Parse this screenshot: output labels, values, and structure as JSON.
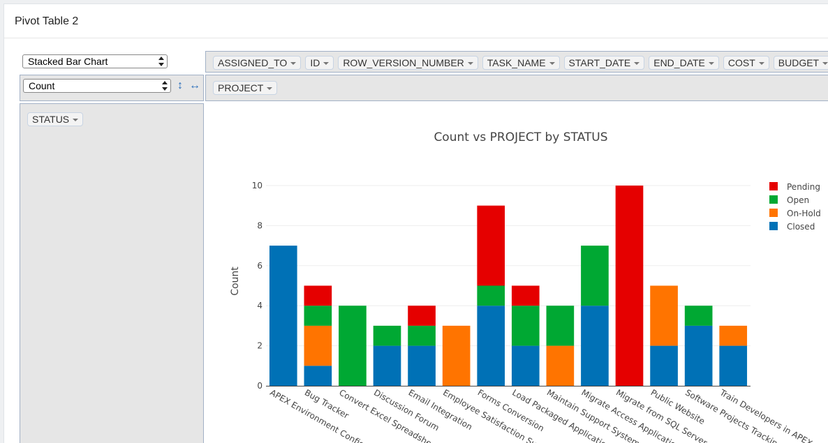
{
  "panel": {
    "title": "Pivot Table 2"
  },
  "renderer_select": {
    "value": "Stacked Bar Chart"
  },
  "aggregator_select": {
    "value": "Count"
  },
  "icons": {
    "sort_rows": "↕",
    "sort_cols": "↔"
  },
  "unused_fields": [
    "ASSIGNED_TO",
    "ID",
    "ROW_VERSION_NUMBER",
    "TASK_NAME",
    "START_DATE",
    "END_DATE",
    "COST",
    "BUDGET"
  ],
  "col_fields": [
    "PROJECT"
  ],
  "row_fields": [
    "STATUS"
  ],
  "colors": {
    "Pending": "#e50000",
    "Open": "#00a833",
    "On-Hold": "#ff7400",
    "Closed": "#0071b6"
  },
  "chart_data": {
    "type": "bar",
    "stacked": true,
    "title": "Count vs PROJECT by STATUS",
    "xlabel": "",
    "ylabel": "Count",
    "ylim": [
      0,
      10.6
    ],
    "yticks": [
      0,
      2,
      4,
      6,
      8,
      10
    ],
    "legend_position": "right",
    "categories": [
      "APEX Environment Configuration",
      "Bug Tracker",
      "Convert Excel Spreadsheet",
      "Discussion Forum",
      "Email Integration",
      "Employee Satisfaction Survey",
      "Forms Conversion",
      "Load Packaged Applications",
      "Maintain Support System",
      "Migrate Access Applications",
      "Migrate from SQL Server",
      "Public Website",
      "Software Projects Tracking",
      "Train Developers in APEX"
    ],
    "series": [
      {
        "name": "Closed",
        "values": [
          7,
          1,
          0,
          2,
          2,
          0,
          4,
          2,
          0,
          4,
          0,
          2,
          3,
          2
        ]
      },
      {
        "name": "On-Hold",
        "values": [
          0,
          2,
          0,
          0,
          0,
          3,
          0,
          0,
          2,
          0,
          0,
          3,
          0,
          1
        ]
      },
      {
        "name": "Open",
        "values": [
          0,
          1,
          4,
          1,
          1,
          0,
          1,
          2,
          2,
          3,
          0,
          0,
          1,
          0
        ]
      },
      {
        "name": "Pending",
        "values": [
          0,
          1,
          0,
          0,
          1,
          0,
          4,
          1,
          0,
          0,
          10,
          0,
          0,
          0
        ]
      }
    ],
    "legend_order": [
      "Pending",
      "Open",
      "On-Hold",
      "Closed"
    ]
  }
}
